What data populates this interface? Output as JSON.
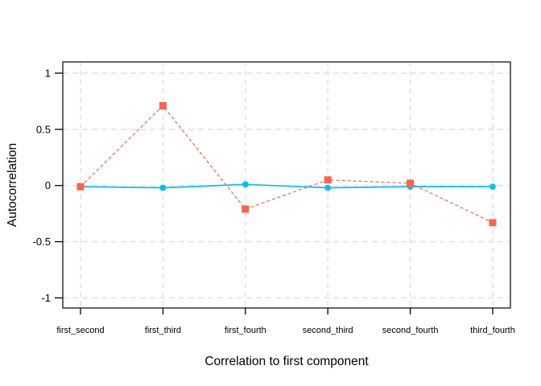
{
  "figure": {
    "background": "#ffffff"
  },
  "chart_data": {
    "type": "line",
    "title": "",
    "xlabel": "Correlation to first component",
    "ylabel": "Autocorrelation",
    "categories": [
      "first_second",
      "first_third",
      "first_fourth",
      "second_third",
      "second_fourth",
      "third_fourth"
    ],
    "series": [
      {
        "name": "blue_circles",
        "color": "#00BFFF",
        "marker": "circle",
        "line_style": "solid",
        "values": [
          -0.01,
          -0.02,
          0.01,
          -0.02,
          -0.01,
          -0.01
        ]
      },
      {
        "name": "red_squares",
        "color": "#FF6347",
        "marker": "square",
        "line_style": "dashed",
        "values": [
          -0.01,
          0.71,
          -0.21,
          0.05,
          0.02,
          -0.33
        ]
      }
    ],
    "ylim": [
      -1.09,
      1.1
    ],
    "yticks": [
      1,
      0.5,
      0,
      -0.5,
      -1
    ],
    "ytick_labels": [
      "1",
      "0.5",
      "0",
      "-0.5",
      "-1"
    ],
    "grid": {
      "style": "dashed",
      "color": "#E7E7E7"
    },
    "axis_color": "#000000",
    "legend": "none"
  }
}
